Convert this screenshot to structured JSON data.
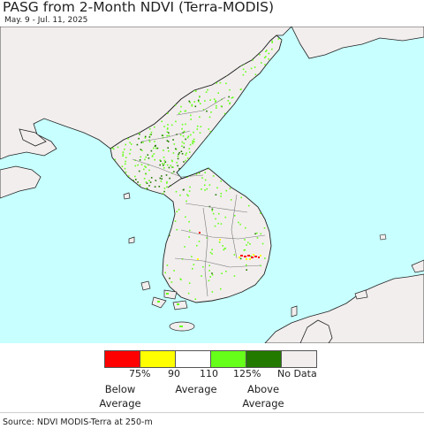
{
  "title": "PASG from 2-Month NDVI (Terra-MODIS)",
  "date_range": "May. 9 - Jul. 11, 2025",
  "colors": {
    "ocean": "#c8ffff",
    "land": "#f2eeee",
    "below_75": "#ff0000",
    "range_75_90": "#ffff00",
    "range_90_110": "#ffffff",
    "range_110_125": "#66ff1a",
    "above_125": "#227a00",
    "no_data": "#f2eeee"
  },
  "legend": {
    "ticks": [
      "75%",
      "90",
      "110",
      "125%",
      "No Data"
    ],
    "labels": {
      "below": "Below\nAverage",
      "average": "Average",
      "above": "Above\nAverage"
    }
  },
  "source": "Source: NDVI MODIS-Terra at 250-m"
}
